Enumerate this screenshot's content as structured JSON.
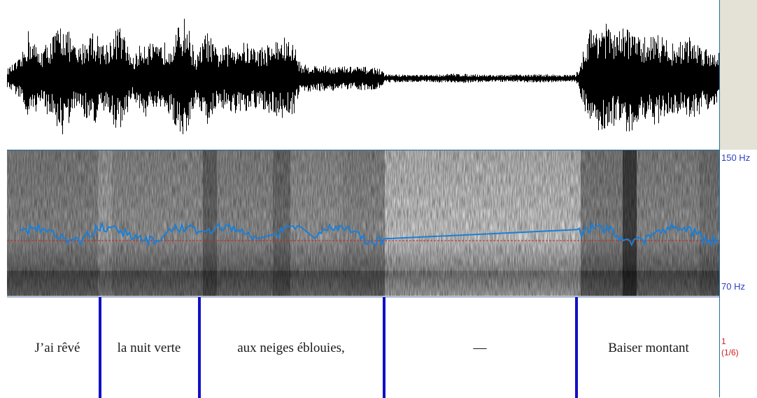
{
  "frequency_axis": {
    "top_label": "150 Hz",
    "bottom_label": "70 Hz"
  },
  "tier": {
    "number": "1",
    "position": "(1/6)",
    "intervals": [
      {
        "text": "J’ai rêvé"
      },
      {
        "text": "la nuit verte"
      },
      {
        "text": "aux neiges éblouies,"
      },
      {
        "text": "—"
      },
      {
        "text": "Baiser montant"
      }
    ]
  },
  "colors": {
    "pitch_track": "#1a7fd6",
    "boundary": "#1010c8",
    "reference_line": "#d02020",
    "axis_label": "#2f3fc0",
    "tier_label": "#d02020"
  }
}
